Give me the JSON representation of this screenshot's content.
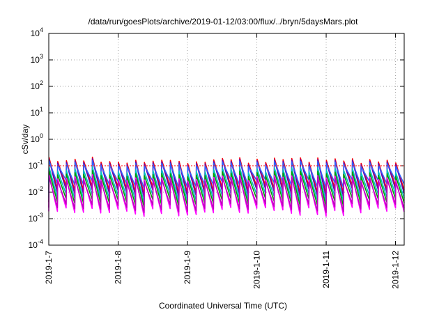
{
  "chart_data": {
    "type": "line",
    "title": "/data/run/goesPlots/archive/2019-01-12/03:00/flux/../bryn/5daysMars.plot",
    "xlabel": "Coordinated Universal Time (UTC)",
    "ylabel": "cSv/day",
    "yscale": "log",
    "ylim": [
      0.0001,
      10000
    ],
    "xlim": [
      "2019-01-07T00:00",
      "2019-01-12T03:00"
    ],
    "grid": true,
    "xticks": [
      "2019-1-7",
      "2019-1-8",
      "2019-1-9",
      "2019-1-10",
      "2019-1-11",
      "2019-1-12"
    ],
    "yticks": [
      {
        "base": "10",
        "exp": "-4"
      },
      {
        "base": "10",
        "exp": "-3"
      },
      {
        "base": "10",
        "exp": "-2"
      },
      {
        "base": "10",
        "exp": "-1"
      },
      {
        "base": "10",
        "exp": "0"
      },
      {
        "base": "10",
        "exp": "1"
      },
      {
        "base": "10",
        "exp": "2"
      },
      {
        "base": "10",
        "exp": "3"
      },
      {
        "base": "10",
        "exp": "4"
      }
    ],
    "reference_line": {
      "value": 0.1,
      "color": "#ff0000"
    },
    "pattern": {
      "description": "sawtooth oscillation, about 8 cycles per day",
      "cycles_per_day": 8
    },
    "series": [
      {
        "color": "#ff0000",
        "peak": 0.16,
        "trough": 0.012
      },
      {
        "color": "#6a00aa",
        "peak": 0.14,
        "trough": 0.009
      },
      {
        "color": "#3060ff",
        "peak": 0.12,
        "trough": 0.02
      },
      {
        "color": "#00c0c0",
        "peak": 0.07,
        "trough": 0.006
      },
      {
        "color": "#00a000",
        "peak": 0.05,
        "trough": 0.004
      },
      {
        "color": "#ff00ff",
        "peak": 0.035,
        "trough": 0.0018
      },
      {
        "color": "#c000c0",
        "peak": 0.03,
        "trough": 0.0025
      }
    ]
  }
}
